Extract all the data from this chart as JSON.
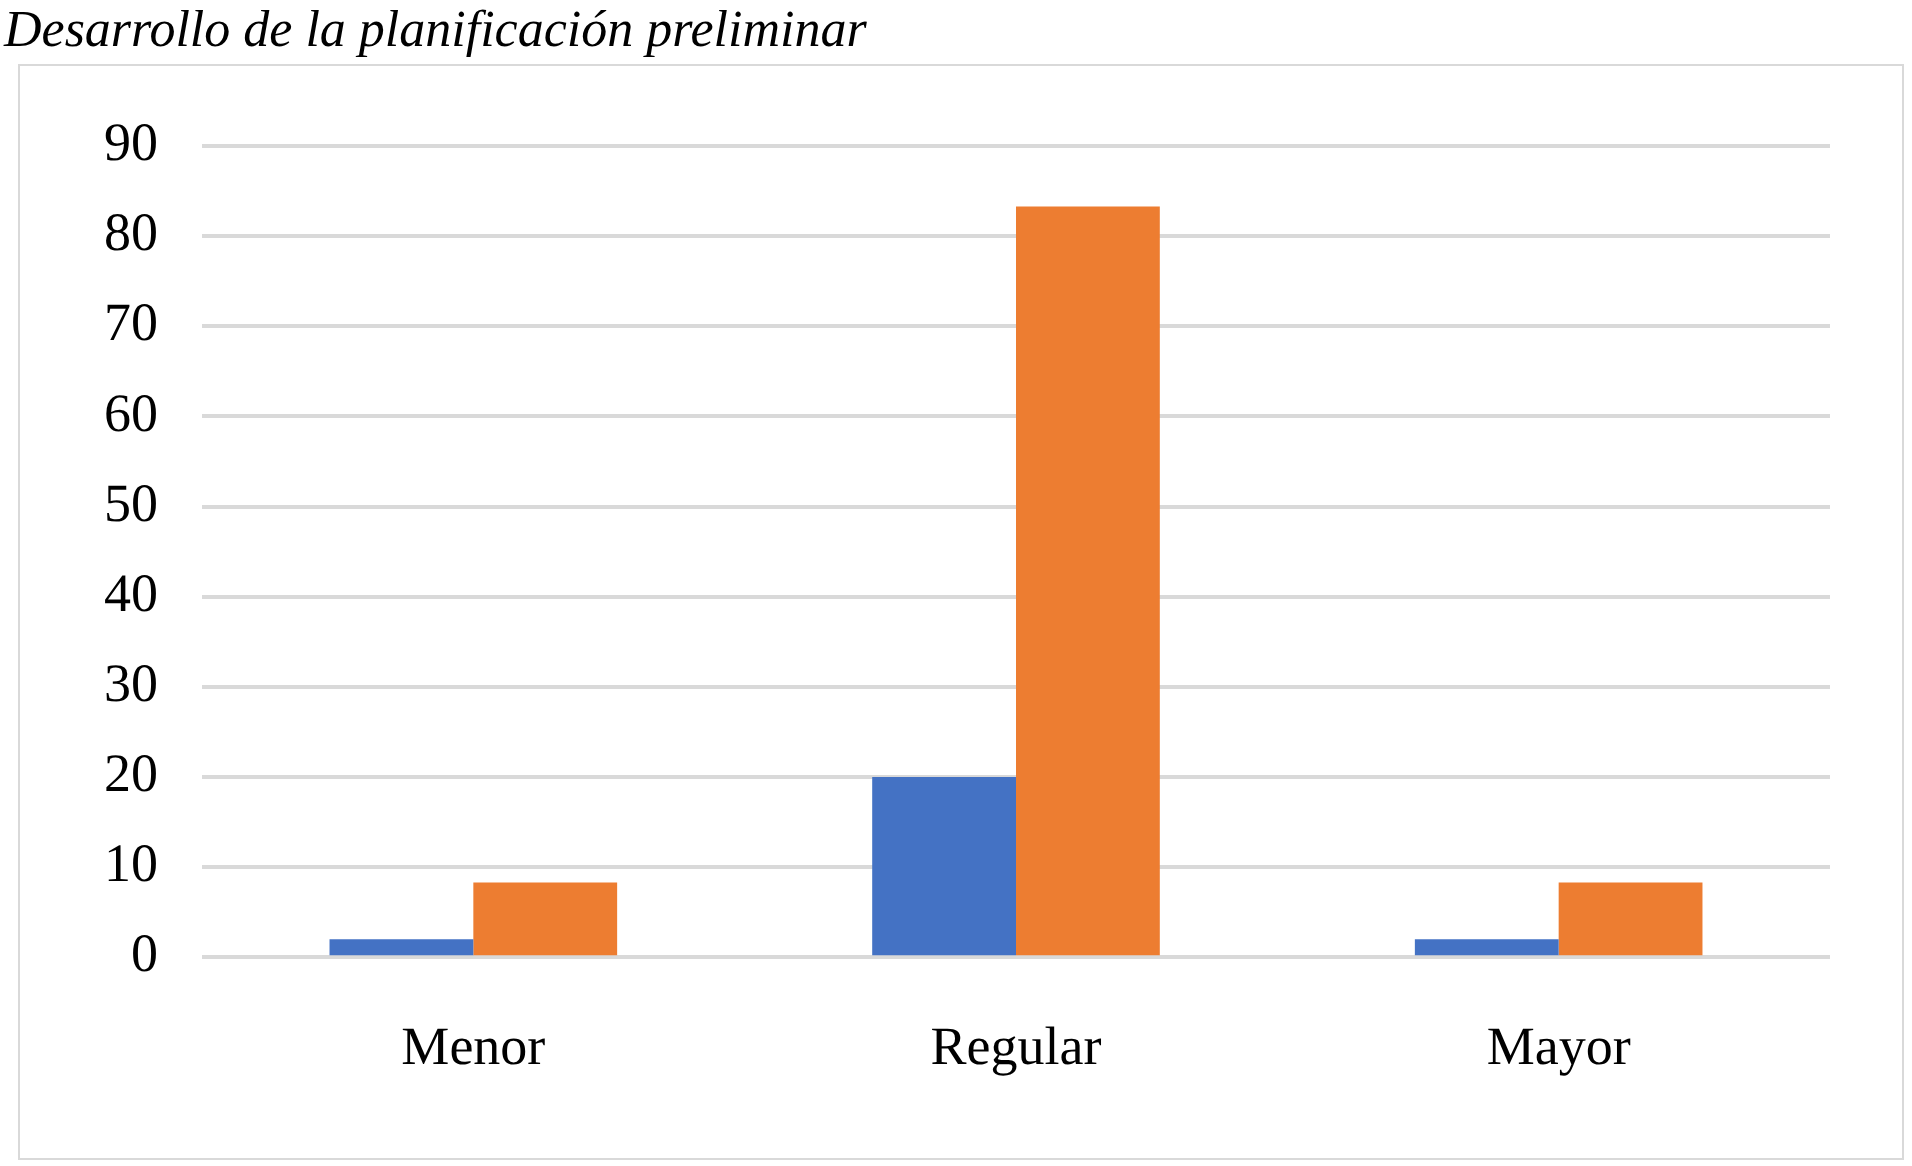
{
  "chart_data": {
    "type": "bar",
    "title": "Desarrollo de la planificación preliminar",
    "categories": [
      "Menor",
      "Regular",
      "Mayor"
    ],
    "series": [
      {
        "color": "#4472c4",
        "values": [
          2,
          20,
          2
        ]
      },
      {
        "color": "#ed7d31",
        "values": [
          8.3,
          83.3,
          8.3
        ]
      }
    ],
    "ylim": [
      0,
      90
    ],
    "yticks": [
      0,
      10,
      20,
      30,
      40,
      50,
      60,
      70,
      80,
      90
    ],
    "grid": "y"
  }
}
